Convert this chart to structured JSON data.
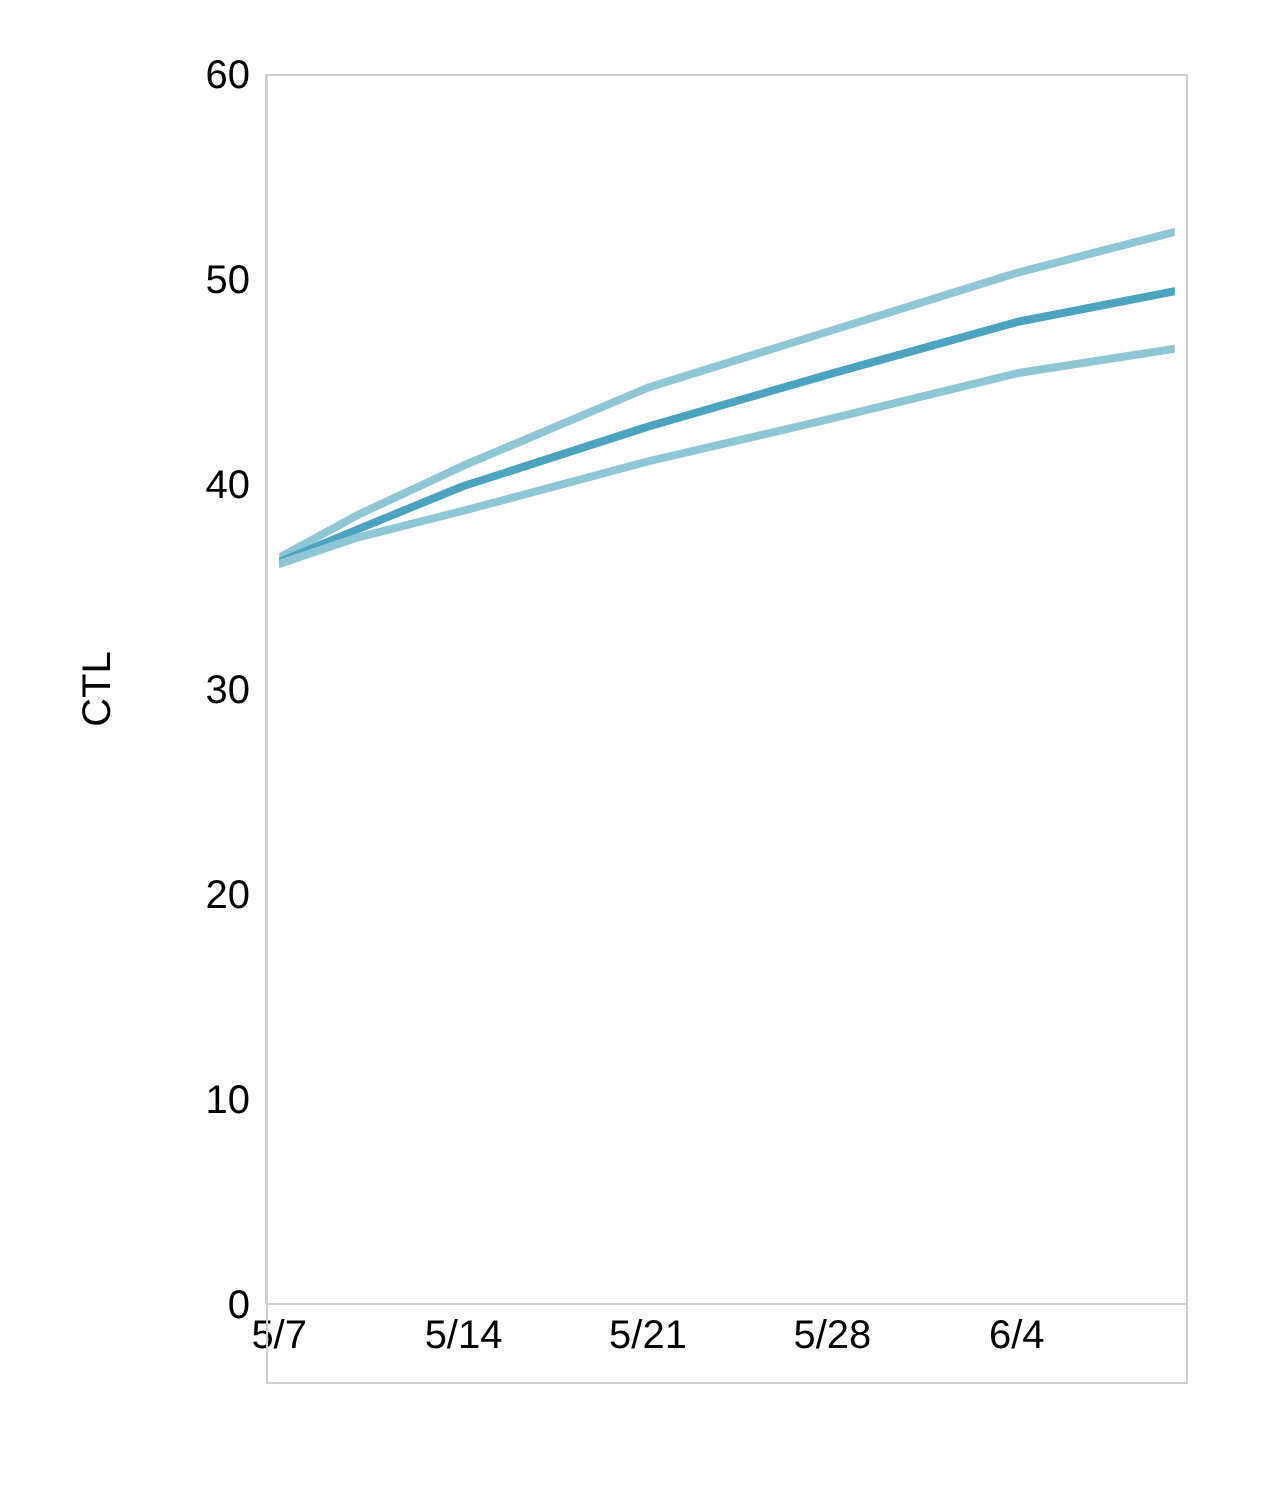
{
  "chart_data": {
    "type": "line",
    "ylabel": "CTL",
    "x": [
      "--05-07",
      "--05-10",
      "--05-14",
      "--05-21",
      "--05-28",
      "--06-04",
      "--06-10"
    ],
    "series": [
      {
        "color": "#8fc6d6",
        "values": [
          36.4,
          38.5,
          40.9,
          44.7,
          47.5,
          50.3,
          52.3
        ]
      },
      {
        "color": "#4ba3bf",
        "values": [
          36.2,
          37.8,
          39.9,
          42.8,
          45.4,
          47.9,
          49.4
        ]
      },
      {
        "color": "#8fc6d6",
        "values": [
          36.1,
          37.4,
          38.7,
          41.1,
          43.2,
          45.4,
          46.6
        ]
      }
    ],
    "xlim": [
      "--05-07",
      "--06-10"
    ],
    "xticks": [
      {
        "value": "--05-07",
        "label": "5/7"
      },
      {
        "value": "--05-14",
        "label": "5/14"
      },
      {
        "value": "--05-21",
        "label": "5/21"
      },
      {
        "value": "--05-28",
        "label": "5/28"
      },
      {
        "value": "--06-04",
        "label": "6/4"
      }
    ],
    "ylim": [
      0,
      60
    ],
    "yticks": [
      0,
      10,
      20,
      30,
      40,
      50,
      60
    ],
    "grid": false,
    "legend": false,
    "marker": "none",
    "line_style": "solid"
  }
}
